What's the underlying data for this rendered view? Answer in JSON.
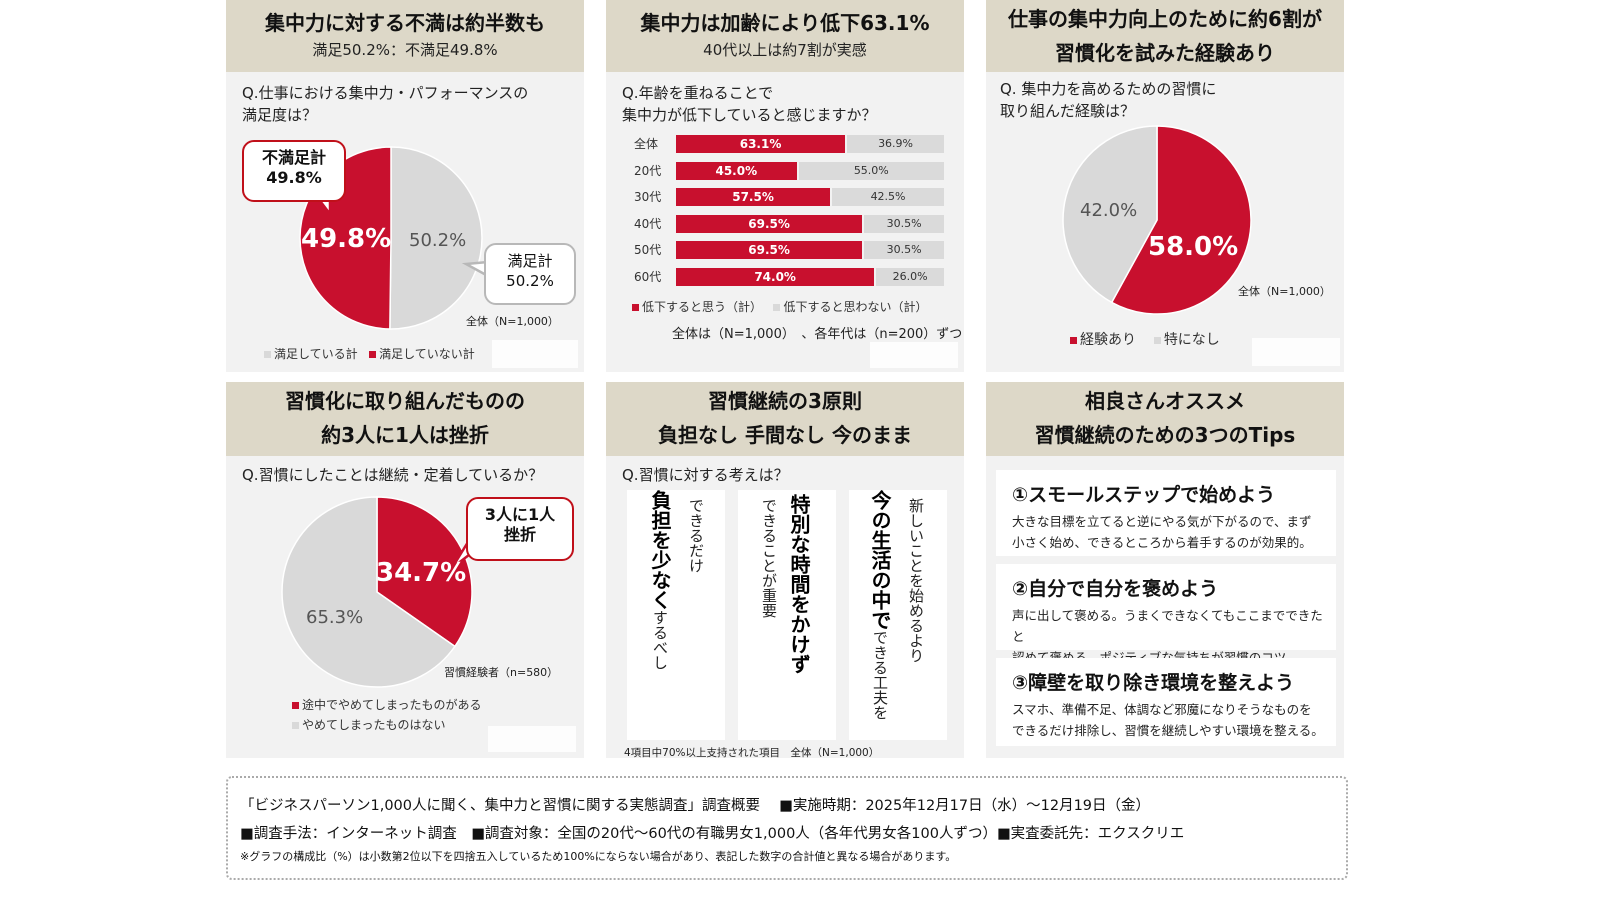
{
  "panel1": {
    "title": "集中力に対する不満は約半数も",
    "subtitle": "満足50.2%：不満足49.8%",
    "question": [
      "Q.仕事における集中力・パフォーマンスの",
      "満足度は？"
    ],
    "callout_red": [
      "不満足計",
      "49.8%"
    ],
    "callout_gray": [
      "満足計",
      "50.2%"
    ],
    "label_red": "49.8%",
    "label_gray": "50.2%",
    "n_note": "全体（N=1,000）",
    "legend": [
      "満足している計",
      "満足していない計"
    ]
  },
  "panel2": {
    "title": "集中力は加齢により低下63.1%",
    "subtitle": "40代以上は約7割が実感",
    "question": [
      "Q.年齢を重ねることで",
      "集中力が低下していると感じますか？"
    ],
    "legend": [
      "低下すると思う（計）",
      "低下すると思わない（計）"
    ],
    "n_note": "全体は（N=1,000）　、各年代は（n=200）ずつ"
  },
  "panel3": {
    "title": [
      "仕事の集中力向上のために約6割が",
      "習慣化を試みた経験あり"
    ],
    "question": [
      "Q. 集中力を高めるための習慣に",
      "取り組んだ経験は？"
    ],
    "label_red": "58.0%",
    "label_gray": "42.0%",
    "n_note": "全体（N=1,000）",
    "legend": [
      "経験あり",
      "特になし"
    ]
  },
  "panel4": {
    "title": [
      "習慣化に取り組んだものの",
      "約3人に1人は挫折"
    ],
    "question": "Q.習慣にしたことは継続・定着しているか？",
    "callout": [
      "3人に1人",
      "挫折"
    ],
    "label_red": "34.7%",
    "label_gray": "65.3%",
    "n_note": "習慣経験者（n=580）",
    "legend": [
      "途中でやめてしまったものがある",
      "やめてしまったものはない"
    ]
  },
  "panel5": {
    "title": [
      "習慣継続の3原則",
      "負担なし 手間なし 今のまま"
    ],
    "question": "Q.習慣に対する考えは？",
    "columns": [
      {
        "pre": "できるだけ",
        "bold": "負担を少なく",
        "post": "するべし"
      },
      {
        "pre": "",
        "bold": "特別な時間をかけず",
        "post": "できることが重要"
      },
      {
        "pre": "新しいことを始めるより",
        "bold": "今の生活の中で",
        "post": "できる工夫を"
      }
    ],
    "n_note": "4項目中70%以上支持された項目　全体（N=1,000）"
  },
  "panel6": {
    "title": [
      "相良さんオススメ",
      "習慣継続のための3つのTips"
    ],
    "tips": [
      {
        "heading": "①スモールステップで始めよう",
        "text": [
          "大きな目標を立てると逆にやる気が下がるので、まず",
          "小さく始め、できるところから着手するのが効果的。"
        ]
      },
      {
        "heading": "②自分で自分を褒めよう",
        "text": [
          "声に出して褒める。うまくできなくてもここまでできたと",
          "認めて褒める。ポジティブな気持ちが習慣のコツ。"
        ]
      },
      {
        "heading": "③障壁を取り除き環境を整えよう",
        "text": [
          "スマホ、準備不足、体調など邪魔になりそうなものを",
          "できるだけ排除し、習慣を継続しやすい環境を整える。"
        ]
      }
    ]
  },
  "footer": {
    "line1": "「ビジネスパーソン1,000人に聞く、集中力と習慣に関する実態調査」調査概要　 ■実施時期：2025年12月17日（水）～12月19日（金）",
    "line2": "■調査手法：インターネット調査　■調査対象：全国の20代～60代の有職男女1,000人（各年代男女各100人ずつ）■実査委託先：エクスクリエ",
    "line3": "※グラフの構成比（%）は小数第2位以下を四捨五入しているため100%にならない場合があり、表記した数字の合計値と異なる場合があります。"
  },
  "colors": {
    "red": "#c8102e",
    "gray": "#d9d9d9",
    "header": "#ddd8c8",
    "panel": "#f2f2f2"
  },
  "chart_data": [
    {
      "type": "pie",
      "labels": [
        "満足している計",
        "満足していない計"
      ],
      "values": [
        50.2,
        49.8
      ]
    },
    {
      "type": "bar",
      "orientation": "horizontal-stacked",
      "categories": [
        "全体",
        "20代",
        "30代",
        "40代",
        "50代",
        "60代"
      ],
      "series": [
        {
          "name": "低下すると思う（計）",
          "values": [
            63.1,
            45.0,
            57.5,
            69.5,
            69.5,
            74.0
          ]
        },
        {
          "name": "低下すると思わない（計）",
          "values": [
            36.9,
            55.0,
            42.5,
            30.5,
            30.5,
            26.0
          ]
        }
      ]
    },
    {
      "type": "pie",
      "labels": [
        "経験あり",
        "特になし"
      ],
      "values": [
        58.0,
        42.0
      ]
    },
    {
      "type": "pie",
      "labels": [
        "途中でやめてしまったものがある",
        "やめてしまったものはない"
      ],
      "values": [
        34.7,
        65.3
      ]
    }
  ]
}
